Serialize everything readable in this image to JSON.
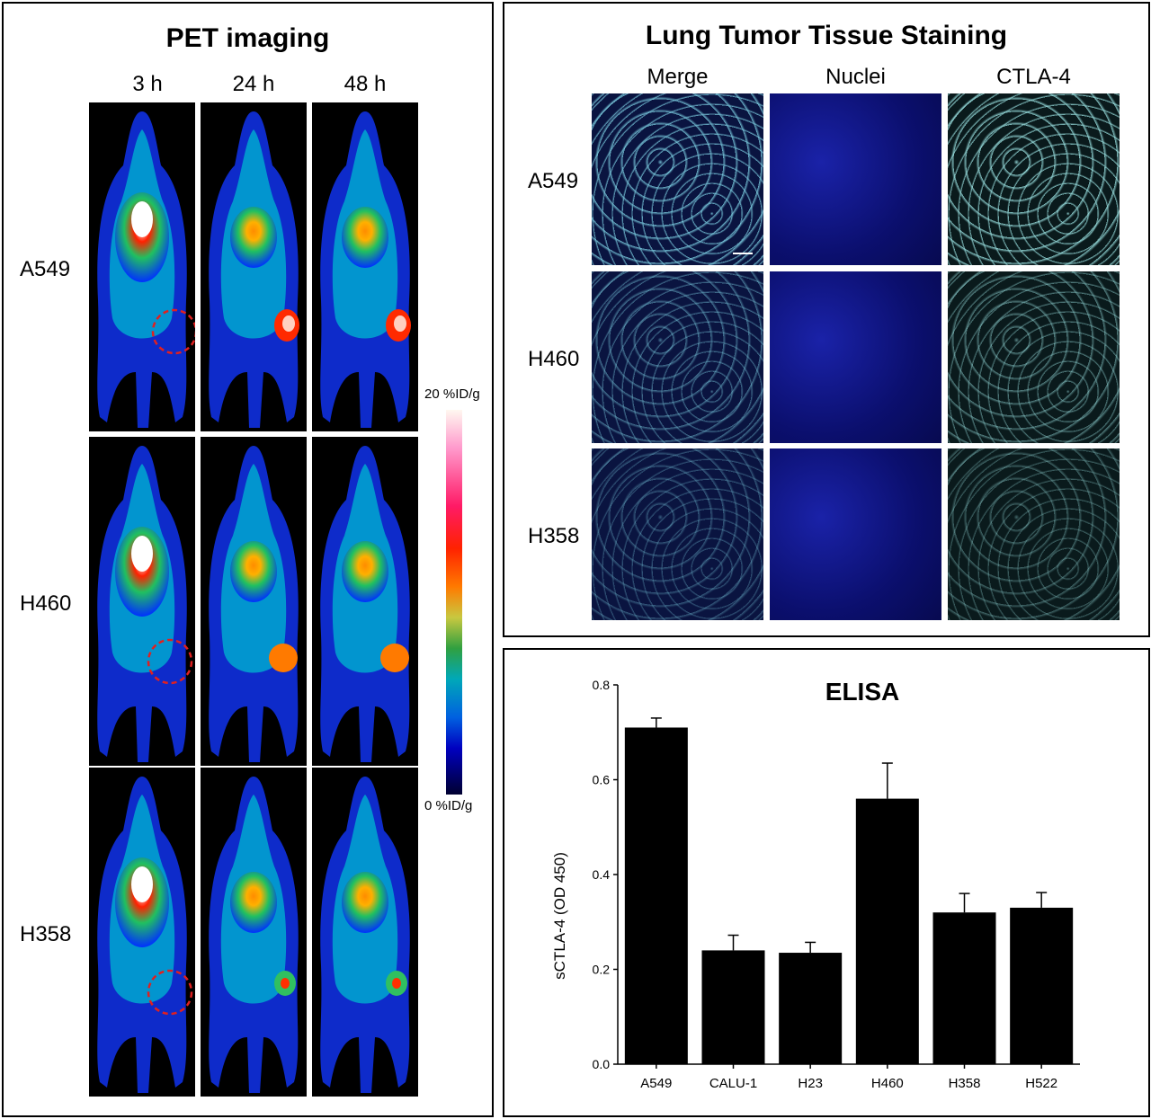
{
  "pet": {
    "title": "PET imaging",
    "timepoints": [
      "3 h",
      "24 h",
      "48 h"
    ],
    "rows": [
      "A549",
      "H460",
      "H358"
    ],
    "colorbar": {
      "max_label": "20 %ID/g",
      "min_label": "0 %ID/g"
    }
  },
  "tissue": {
    "title": "Lung Tumor Tissue Staining",
    "columns": [
      "Merge",
      "Nuclei",
      "CTLA-4"
    ],
    "rows": [
      "A549",
      "H460",
      "H358"
    ]
  },
  "chart_data": {
    "type": "bar",
    "title": "ELISA",
    "ylabel": "sCTLA-4 (OD 450)",
    "xlabel": "",
    "categories": [
      "A549",
      "CALU-1",
      "H23",
      "H460",
      "H358",
      "H522"
    ],
    "values": [
      0.71,
      0.24,
      0.235,
      0.56,
      0.32,
      0.33
    ],
    "errors": [
      0.02,
      0.032,
      0.022,
      0.075,
      0.04,
      0.032
    ],
    "ylim": [
      0.0,
      0.8
    ],
    "yticks": [
      "0.0",
      "0.2",
      "0.4",
      "0.6",
      "0.8"
    ],
    "bar_color": "#000000"
  }
}
